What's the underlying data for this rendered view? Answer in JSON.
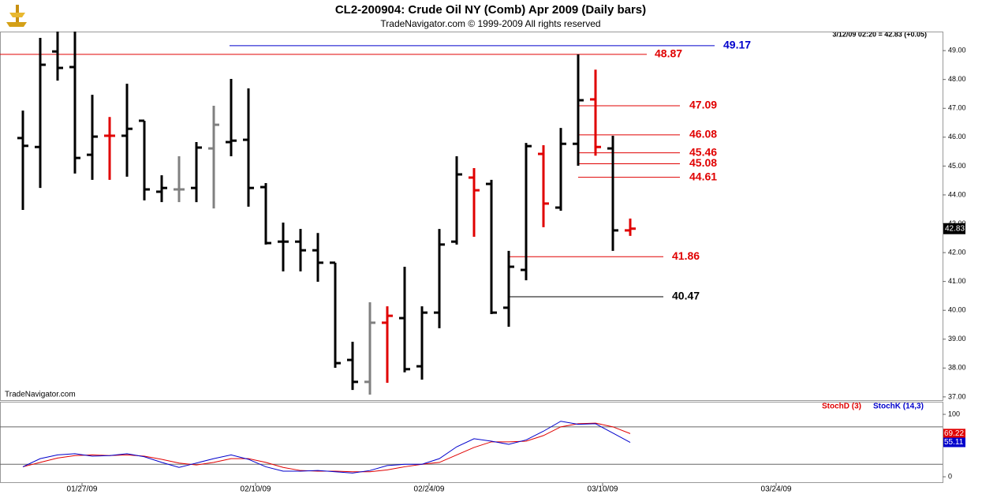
{
  "chart_data": [
    {
      "type": "ohlc",
      "title": "CL2-200904:  Crude Oil NY (Comb) Apr 2009  (Daily bars)",
      "subtitle": "TradeNavigator.com © 1999-2009 All rights reserved",
      "status": "3/12/09 02:20 = 42.83 (+0.05)",
      "watermark": "TradeNavigator.com",
      "categories": [
        null,
        null,
        null,
        "01/27/09",
        null,
        null,
        null,
        null,
        null,
        null,
        null,
        null,
        null,
        "02/10/09",
        null,
        null,
        null,
        null,
        null,
        null,
        null,
        null,
        null,
        "02/24/09",
        null,
        null,
        null,
        null,
        null,
        null,
        null,
        null,
        null,
        "03/10/09",
        null,
        null,
        null,
        null,
        null,
        null,
        null,
        null,
        null,
        "03/24/09"
      ],
      "open": [
        45.97,
        45.66,
        48.97,
        48.43,
        45.39,
        46.05,
        46.05,
        46.57,
        44.11,
        44.19,
        44.24,
        45.61,
        45.83,
        45.91,
        44.27,
        42.38,
        42.38,
        42.08,
        41.65,
        38.28,
        37.52,
        39.57,
        39.73,
        38.06,
        39.92,
        42.38,
        44.6,
        44.38,
        40.09,
        41.4,
        45.42,
        43.56,
        45.77,
        47.31,
        45.61,
        42.77,
        null,
        null,
        null,
        null,
        null,
        null,
        null,
        null
      ],
      "high": [
        46.92,
        49.44,
        49.7,
        49.7,
        47.47,
        46.7,
        47.85,
        46.57,
        44.68,
        45.34,
        45.83,
        47.09,
        48.02,
        47.69,
        44.41,
        43.04,
        42.82,
        42.68,
        41.65,
        38.91,
        40.28,
        40.14,
        41.51,
        40.14,
        42.82,
        45.34,
        44.93,
        44.52,
        42.06,
        45.8,
        45.72,
        46.32,
        48.87,
        48.34,
        46.05,
        43.18,
        null,
        null,
        null,
        null,
        null,
        null,
        null,
        null
      ],
      "low": [
        43.48,
        44.24,
        47.96,
        44.74,
        44.52,
        44.52,
        44.63,
        43.81,
        43.75,
        43.75,
        43.75,
        43.53,
        45.34,
        43.59,
        42.28,
        41.35,
        41.35,
        40.99,
        38.01,
        37.24,
        37.08,
        37.49,
        37.85,
        37.6,
        39.38,
        42.28,
        42.55,
        39.87,
        39.43,
        41.04,
        42.88,
        43.45,
        45.01,
        45.36,
        42.06,
        42.58,
        null,
        null,
        null,
        null,
        null,
        null,
        null,
        null
      ],
      "close": [
        45.7,
        48.51,
        48.4,
        45.28,
        46.02,
        46.05,
        46.29,
        44.19,
        44.24,
        44.19,
        45.64,
        46.43,
        45.88,
        44.24,
        42.33,
        42.38,
        42.08,
        41.65,
        38.17,
        37.52,
        39.57,
        39.81,
        37.96,
        39.92,
        42.28,
        44.71,
        44.16,
        39.92,
        41.51,
        45.69,
        43.7,
        45.77,
        47.28,
        45.66,
        42.77,
        42.83,
        null,
        null,
        null,
        null,
        null,
        null,
        null,
        null
      ],
      "bar_colors": [
        "#000000",
        "#000000",
        "#000000",
        "#000000",
        "#000000",
        "#e00000",
        "#000000",
        "#000000",
        "#000000",
        "#808080",
        "#000000",
        "#808080",
        "#000000",
        "#000000",
        "#000000",
        "#000000",
        "#000000",
        "#000000",
        "#000000",
        "#000000",
        "#808080",
        "#e00000",
        "#000000",
        "#000000",
        "#000000",
        "#000000",
        "#e00000",
        "#000000",
        "#000000",
        "#000000",
        "#e00000",
        "#000000",
        "#000000",
        "#e00000",
        "#000000",
        "#e00000",
        null,
        null,
        null,
        null,
        null,
        null,
        null,
        null
      ],
      "levels": [
        {
          "value": 49.17,
          "color": "#0000cc"
        },
        {
          "value": 48.87,
          "color": "#e00000"
        },
        {
          "value": 47.09,
          "color": "#e00000"
        },
        {
          "value": 46.08,
          "color": "#e00000"
        },
        {
          "value": 45.46,
          "color": "#e00000"
        },
        {
          "value": 45.08,
          "color": "#e00000"
        },
        {
          "value": 44.61,
          "color": "#e00000"
        },
        {
          "value": 41.86,
          "color": "#e00000"
        },
        {
          "value": 40.47,
          "color": "#000000"
        }
      ],
      "ylim": [
        36.86,
        49.66
      ],
      "yticks": [
        {
          "value": 37,
          "label": "37.00"
        },
        {
          "value": 38,
          "label": "38.00"
        },
        {
          "value": 39,
          "label": "39.00"
        },
        {
          "value": 40,
          "label": "40.00"
        },
        {
          "value": 41,
          "label": "41.00"
        },
        {
          "value": 42,
          "label": "42.00"
        },
        {
          "value": 43,
          "label": "43.00"
        },
        {
          "value": 44,
          "label": "44.00"
        },
        {
          "value": 45,
          "label": "45.00"
        },
        {
          "value": 46,
          "label": "46.00"
        },
        {
          "value": 47,
          "label": "47.00"
        },
        {
          "value": 48,
          "label": "48.00"
        },
        {
          "value": 49,
          "label": "49.00"
        }
      ]
    },
    {
      "type": "line",
      "series": [
        {
          "name": "StochD (3)",
          "color": "#e00000",
          "values": [
            16,
            23,
            30,
            34,
            35,
            34,
            35,
            33,
            28,
            22,
            19,
            23,
            29,
            29,
            23,
            15,
            10,
            9,
            9,
            8,
            8,
            11,
            16,
            20,
            23,
            35,
            47,
            56,
            56,
            57,
            66,
            80,
            85,
            86,
            80,
            69.22,
            null,
            null,
            null,
            null,
            null,
            null,
            null,
            null
          ]
        },
        {
          "name": "StochK (14,3)",
          "color": "#0000cc",
          "values": [
            16,
            29,
            35,
            37,
            33,
            34,
            37,
            32,
            23,
            15,
            22,
            29,
            35,
            28,
            16,
            9,
            9,
            10,
            8,
            6,
            10,
            18,
            20,
            20,
            29,
            48,
            61,
            57,
            52,
            59,
            73,
            89,
            84,
            85,
            70,
            55.11,
            null,
            null,
            null,
            null,
            null,
            null,
            null,
            null
          ]
        }
      ],
      "levels": [
        80,
        20
      ],
      "ylim": [
        -10,
        119
      ],
      "yticks": [
        0,
        100
      ]
    }
  ]
}
